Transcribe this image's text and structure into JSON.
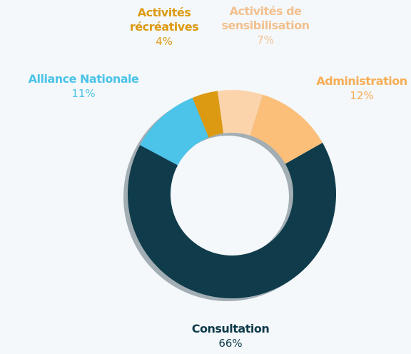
{
  "chart_data": {
    "type": "donut",
    "categories": [
      "Activités récréatives",
      "Activités de sensibilisation",
      "Administration",
      "Consultation",
      "Alliance Nationale"
    ],
    "values": [
      4,
      7,
      12,
      66,
      11
    ],
    "value_labels": [
      "4%",
      "7%",
      "12%",
      "66%",
      "11%"
    ],
    "colors": [
      "#dc9a12",
      "#fbd4ab",
      "#fbbf7a",
      "#0f3b4b",
      "#4cc3e8"
    ]
  }
}
